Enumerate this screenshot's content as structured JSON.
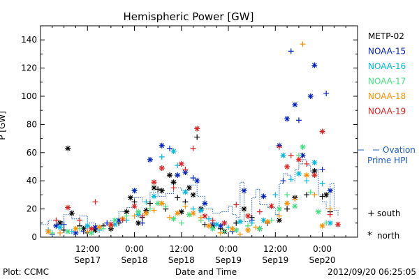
{
  "chart_data": {
    "type": "scatter",
    "title": "Hemispheric Power [GW]",
    "ylabel": "P [GW]",
    "xlabel": "Date and Time",
    "ylim": [
      0,
      150
    ],
    "xlim_hours": [
      0,
      81
    ],
    "y_ticks": [
      0,
      20,
      40,
      60,
      80,
      100,
      120,
      140
    ],
    "x_ticks": [
      {
        "t": 12,
        "line1": "12:00",
        "line2": "Sep17"
      },
      {
        "t": 24,
        "line1": "0:00",
        "line2": "Sep18"
      },
      {
        "t": 36,
        "line1": "12:00",
        "line2": "Sep18"
      },
      {
        "t": 48,
        "line1": "0:00",
        "line2": "Sep19"
      },
      {
        "t": 60,
        "line1": "12:00",
        "line2": "Sep19"
      },
      {
        "t": 72,
        "line1": "0:00",
        "line2": "Sep20"
      }
    ],
    "footer_left": "Plot: CCMC",
    "footer_right": "2012/09/20 06:25:05",
    "marker_legend": [
      {
        "symbol": "+",
        "label": "south"
      },
      {
        "symbol": "*",
        "label": "north"
      }
    ],
    "ovation_label": [
      "Ovation",
      "Prime HPI"
    ],
    "series": [
      {
        "name": "METP-02",
        "color": "#000000",
        "points": [
          [
            5,
            10,
            "*"
          ],
          [
            6,
            5,
            "+"
          ],
          [
            7,
            63,
            "*"
          ],
          [
            8,
            17,
            "*"
          ],
          [
            10,
            8,
            "+"
          ],
          [
            11,
            6,
            "*"
          ],
          [
            12,
            3,
            "+"
          ],
          [
            14,
            5,
            "*"
          ],
          [
            16,
            8,
            "+"
          ],
          [
            18,
            6,
            "*"
          ],
          [
            20,
            10,
            "+"
          ],
          [
            22,
            18,
            "*"
          ],
          [
            23,
            28,
            "*"
          ],
          [
            24,
            25,
            "+"
          ],
          [
            25,
            10,
            "*"
          ],
          [
            26,
            14,
            "+"
          ],
          [
            27,
            19,
            "*"
          ],
          [
            28,
            24,
            "+"
          ],
          [
            29,
            35,
            "*"
          ],
          [
            30,
            34,
            "+"
          ],
          [
            31,
            33,
            "*"
          ],
          [
            32,
            20,
            "+"
          ],
          [
            33,
            44,
            "*"
          ],
          [
            34,
            39,
            "*"
          ],
          [
            35,
            28,
            "+"
          ],
          [
            36,
            18,
            "*"
          ],
          [
            37,
            25,
            "+"
          ],
          [
            38,
            35,
            "*"
          ],
          [
            39,
            30,
            "*"
          ],
          [
            40,
            71,
            "+"
          ],
          [
            41,
            20,
            "*"
          ],
          [
            42,
            9,
            "+"
          ],
          [
            44,
            8,
            "*"
          ],
          [
            46,
            6,
            "+"
          ],
          [
            47,
            4,
            "*"
          ],
          [
            50,
            10,
            "+"
          ],
          [
            52,
            20,
            "*"
          ],
          [
            54,
            14,
            "+"
          ],
          [
            56,
            6,
            "*"
          ],
          [
            58,
            10,
            "+"
          ],
          [
            61,
            12,
            "*"
          ],
          [
            63,
            20,
            "+"
          ],
          [
            65,
            28,
            "*"
          ],
          [
            68,
            30,
            "+"
          ],
          [
            70,
            47,
            "*"
          ],
          [
            72,
            29,
            "+"
          ],
          [
            73,
            30,
            "*"
          ],
          [
            74,
            18,
            "+"
          ]
        ]
      },
      {
        "name": "NOAA-15",
        "color": "#0020c0",
        "points": [
          [
            3,
            2,
            "+"
          ],
          [
            4,
            8,
            "*"
          ],
          [
            6,
            9,
            "+"
          ],
          [
            9,
            3,
            "*"
          ],
          [
            11,
            4,
            "+"
          ],
          [
            14,
            7,
            "*"
          ],
          [
            17,
            10,
            "+"
          ],
          [
            20,
            12,
            "*"
          ],
          [
            24,
            33,
            "*"
          ],
          [
            26,
            10,
            "+"
          ],
          [
            28,
            55,
            "*"
          ],
          [
            31,
            65,
            "*"
          ],
          [
            33,
            63,
            "+"
          ],
          [
            35,
            44,
            "*"
          ],
          [
            37,
            46,
            "*"
          ],
          [
            39,
            42,
            "+"
          ],
          [
            40,
            40,
            "*"
          ],
          [
            42,
            24,
            "*"
          ],
          [
            44,
            10,
            "+"
          ],
          [
            46,
            8,
            "*"
          ],
          [
            49,
            4,
            "+"
          ],
          [
            52,
            33,
            "*"
          ],
          [
            54,
            12,
            "+"
          ],
          [
            57,
            29,
            "*"
          ],
          [
            59,
            22,
            "+"
          ],
          [
            61,
            65,
            "*"
          ],
          [
            62,
            40,
            "+"
          ],
          [
            63,
            84,
            "*"
          ],
          [
            64,
            132,
            "+"
          ],
          [
            65,
            94,
            "*"
          ],
          [
            66,
            83,
            "+"
          ],
          [
            67,
            58,
            "*"
          ],
          [
            69,
            100,
            "*"
          ],
          [
            70,
            122,
            "*"
          ],
          [
            72,
            48,
            "+"
          ],
          [
            73,
            102,
            "+"
          ],
          [
            74,
            33,
            "*"
          ]
        ]
      },
      {
        "name": "NOAA-16",
        "color": "#00b8e0",
        "points": [
          [
            2,
            5,
            "+"
          ],
          [
            5,
            7,
            "*"
          ],
          [
            8,
            4,
            "+"
          ],
          [
            12,
            8,
            "*"
          ],
          [
            15,
            5,
            "+"
          ],
          [
            19,
            9,
            "*"
          ],
          [
            22,
            12,
            "+"
          ],
          [
            25,
            16,
            "*"
          ],
          [
            27,
            25,
            "+"
          ],
          [
            29,
            29,
            "*"
          ],
          [
            31,
            57,
            "+"
          ],
          [
            34,
            61,
            "*"
          ],
          [
            35,
            51,
            "+"
          ],
          [
            37,
            32,
            "*"
          ],
          [
            39,
            20,
            "+"
          ],
          [
            41,
            19,
            "*"
          ],
          [
            43,
            13,
            "+"
          ],
          [
            45,
            9,
            "*"
          ],
          [
            48,
            7,
            "+"
          ],
          [
            51,
            11,
            "*"
          ],
          [
            54,
            10,
            "+"
          ],
          [
            57,
            12,
            "*"
          ],
          [
            60,
            30,
            "+"
          ],
          [
            62,
            58,
            "*"
          ],
          [
            64,
            41,
            "+"
          ],
          [
            66,
            45,
            "*"
          ],
          [
            68,
            40,
            "+"
          ],
          [
            70,
            53,
            "*"
          ],
          [
            72,
            38,
            "+"
          ],
          [
            74,
            10,
            "*"
          ]
        ]
      },
      {
        "name": "NOAA-17",
        "color": "#40e080",
        "points": [
          [
            3,
            3,
            "+"
          ],
          [
            7,
            4,
            "*"
          ],
          [
            10,
            6,
            "+"
          ],
          [
            13,
            3,
            "*"
          ],
          [
            16,
            6,
            "+"
          ],
          [
            19,
            12,
            "*"
          ],
          [
            22,
            15,
            "+"
          ],
          [
            25,
            18,
            "*"
          ],
          [
            28,
            20,
            "+"
          ],
          [
            30,
            24,
            "*"
          ],
          [
            32,
            22,
            "+"
          ],
          [
            34,
            13,
            "*"
          ],
          [
            36,
            10,
            "+"
          ],
          [
            38,
            16,
            "*"
          ],
          [
            41,
            12,
            "+"
          ],
          [
            44,
            6,
            "*"
          ],
          [
            47,
            4,
            "+"
          ],
          [
            50,
            5,
            "*"
          ],
          [
            53,
            8,
            "+"
          ],
          [
            56,
            6,
            "*"
          ],
          [
            59,
            12,
            "+"
          ],
          [
            61,
            20,
            "*"
          ],
          [
            63,
            30,
            "+"
          ],
          [
            65,
            22,
            "*"
          ],
          [
            66,
            58,
            "+"
          ],
          [
            67,
            64,
            "*"
          ],
          [
            69,
            32,
            "+"
          ],
          [
            71,
            18,
            "*"
          ],
          [
            73,
            10,
            "+"
          ]
        ]
      },
      {
        "name": "NOAA-18",
        "color": "#ff9000",
        "points": [
          [
            2,
            4,
            "*"
          ],
          [
            5,
            3,
            "+"
          ],
          [
            9,
            6,
            "*"
          ],
          [
            12,
            4,
            "+"
          ],
          [
            15,
            7,
            "*"
          ],
          [
            18,
            8,
            "+"
          ],
          [
            21,
            13,
            "*"
          ],
          [
            24,
            15,
            "+"
          ],
          [
            27,
            17,
            "*"
          ],
          [
            29,
            19,
            "+"
          ],
          [
            31,
            24,
            "*"
          ],
          [
            33,
            14,
            "+"
          ],
          [
            35,
            17,
            "*"
          ],
          [
            37,
            22,
            "+"
          ],
          [
            39,
            17,
            "*"
          ],
          [
            41,
            14,
            "+"
          ],
          [
            43,
            8,
            "*"
          ],
          [
            46,
            3,
            "+"
          ],
          [
            49,
            6,
            "*"
          ],
          [
            51,
            2,
            "+"
          ],
          [
            53,
            5,
            "*"
          ],
          [
            55,
            7,
            "+"
          ],
          [
            58,
            11,
            "*"
          ],
          [
            61,
            15,
            "+"
          ],
          [
            63,
            24,
            "*"
          ],
          [
            65,
            27,
            "+"
          ],
          [
            67,
            137,
            "+"
          ],
          [
            68,
            44,
            "*"
          ],
          [
            70,
            30,
            "+"
          ],
          [
            72,
            8,
            "*"
          ],
          [
            74,
            20,
            "+"
          ]
        ]
      },
      {
        "name": "NOAA-19",
        "color": "#e02020",
        "points": [
          [
            4,
            12,
            "+"
          ],
          [
            7,
            21,
            "*"
          ],
          [
            10,
            12,
            "+"
          ],
          [
            13,
            6,
            "*"
          ],
          [
            14,
            25,
            "+"
          ],
          [
            18,
            9,
            "*"
          ],
          [
            21,
            12,
            "+"
          ],
          [
            24,
            22,
            "*"
          ],
          [
            26,
            15,
            "+"
          ],
          [
            29,
            39,
            "*"
          ],
          [
            31,
            49,
            "*"
          ],
          [
            34,
            35,
            "+"
          ],
          [
            36,
            52,
            "*"
          ],
          [
            37,
            48,
            "+"
          ],
          [
            39,
            63,
            "+"
          ],
          [
            40,
            77,
            "*"
          ],
          [
            42,
            15,
            "*"
          ],
          [
            44,
            12,
            "+"
          ],
          [
            47,
            10,
            "*"
          ],
          [
            50,
            23,
            "+"
          ],
          [
            53,
            15,
            "*"
          ],
          [
            56,
            18,
            "+"
          ],
          [
            59,
            22,
            "*"
          ],
          [
            61,
            64,
            "+"
          ],
          [
            63,
            50,
            "*"
          ],
          [
            64,
            58,
            "+"
          ],
          [
            66,
            55,
            "*"
          ],
          [
            68,
            52,
            "+"
          ],
          [
            70,
            44,
            "*"
          ],
          [
            72,
            75,
            "*"
          ],
          [
            74,
            16,
            "+"
          ],
          [
            76,
            9,
            "*"
          ]
        ]
      }
    ],
    "ovation_prime_hpi": {
      "name": "Ovation Prime HPI",
      "color": "#2060c0",
      "points": [
        [
          0,
          9
        ],
        [
          2,
          12
        ],
        [
          4,
          11
        ],
        [
          6,
          16
        ],
        [
          8,
          13
        ],
        [
          10,
          15
        ],
        [
          12,
          10
        ],
        [
          14,
          8
        ],
        [
          16,
          9
        ],
        [
          18,
          12
        ],
        [
          20,
          18
        ],
        [
          22,
          21
        ],
        [
          24,
          28
        ],
        [
          26,
          25
        ],
        [
          28,
          32
        ],
        [
          30,
          29
        ],
        [
          32,
          31
        ],
        [
          34,
          35
        ],
        [
          36,
          33
        ],
        [
          38,
          37
        ],
        [
          40,
          29
        ],
        [
          42,
          20
        ],
        [
          44,
          17
        ],
        [
          46,
          18
        ],
        [
          48,
          22
        ],
        [
          49,
          16
        ],
        [
          50,
          14
        ],
        [
          51,
          39
        ],
        [
          52,
          11
        ],
        [
          54,
          28
        ],
        [
          55,
          34
        ],
        [
          56,
          23
        ],
        [
          58,
          21
        ],
        [
          60,
          16
        ],
        [
          61,
          38
        ],
        [
          62,
          45
        ],
        [
          63,
          44
        ],
        [
          64,
          40
        ],
        [
          65,
          48
        ],
        [
          66,
          52
        ],
        [
          67,
          55
        ],
        [
          68,
          51
        ],
        [
          69,
          46
        ],
        [
          70,
          48
        ],
        [
          71,
          30
        ],
        [
          72,
          25
        ],
        [
          73,
          20
        ],
        [
          74,
          38
        ],
        [
          75,
          19
        ],
        [
          76,
          15
        ]
      ]
    }
  }
}
